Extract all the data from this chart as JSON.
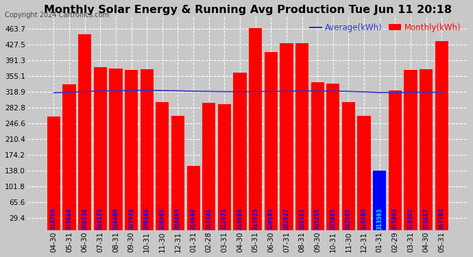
{
  "title": "Monthly Solar Energy & Running Avg Production Tue Jun 11 20:18",
  "copyright": "Copyright 2024 Cartronics.com",
  "legend_avg": "Average(kWh)",
  "legend_monthly": "Monthly(kWh)",
  "categories": [
    "04-30",
    "05-31",
    "06-30",
    "07-31",
    "08-31",
    "09-30",
    "10-31",
    "11-30",
    "12-31",
    "01-31",
    "02-28",
    "03-31",
    "04-30",
    "05-31",
    "06-30",
    "07-31",
    "08-31",
    "09-30",
    "10-31",
    "11-30",
    "12-31",
    "01-31",
    "02-29",
    "03-31",
    "04-30",
    "05-31"
  ],
  "monthly_values": [
    262,
    336,
    451,
    375,
    372,
    369,
    370,
    295,
    263,
    148,
    293,
    291,
    362,
    465,
    410,
    430,
    430,
    341,
    337,
    295,
    263,
    138,
    322,
    369,
    370,
    435
  ],
  "bar_labels": [
    "314700",
    "315664",
    "320736",
    "324175",
    "326690",
    "327978",
    "329146",
    "326995",
    "324465",
    "314689",
    "313346",
    "312075",
    "314086",
    "317925",
    "320185",
    "322827",
    "325361",
    "325255",
    "325865",
    "322565",
    "319580",
    "313593",
    "315802",
    "314502",
    "315667",
    "317382"
  ],
  "avg_values": [
    316.5,
    317.5,
    319.5,
    320.5,
    321.0,
    321.5,
    322.0,
    321.5,
    321.0,
    320.0,
    319.5,
    319.0,
    319.0,
    319.0,
    319.5,
    320.0,
    320.5,
    320.5,
    320.5,
    319.5,
    318.5,
    317.0,
    317.0,
    317.5,
    317.5,
    317.5
  ],
  "highlight_bar_index": 21,
  "bar_color": "#ff0000",
  "highlight_bar_color": "#0000ff",
  "avg_line_color": "#3333cc",
  "bar_label_color": "#0000ff",
  "highlight_label_color": "#00ffff",
  "background_color": "#c8c8c8",
  "plot_bg_color": "#c8c8c8",
  "title_color": "#000000",
  "grid_color": "#ffffff",
  "ylim_min": 0,
  "ylim_max": 493.1,
  "yticks": [
    29.4,
    65.6,
    101.8,
    138.0,
    174.2,
    210.4,
    246.6,
    282.8,
    318.9,
    355.1,
    391.3,
    427.5,
    463.7
  ],
  "title_fontsize": 11.5,
  "copyright_fontsize": 7,
  "label_fontsize": 5.5,
  "tick_fontsize": 7.5,
  "legend_fontsize": 8.5
}
